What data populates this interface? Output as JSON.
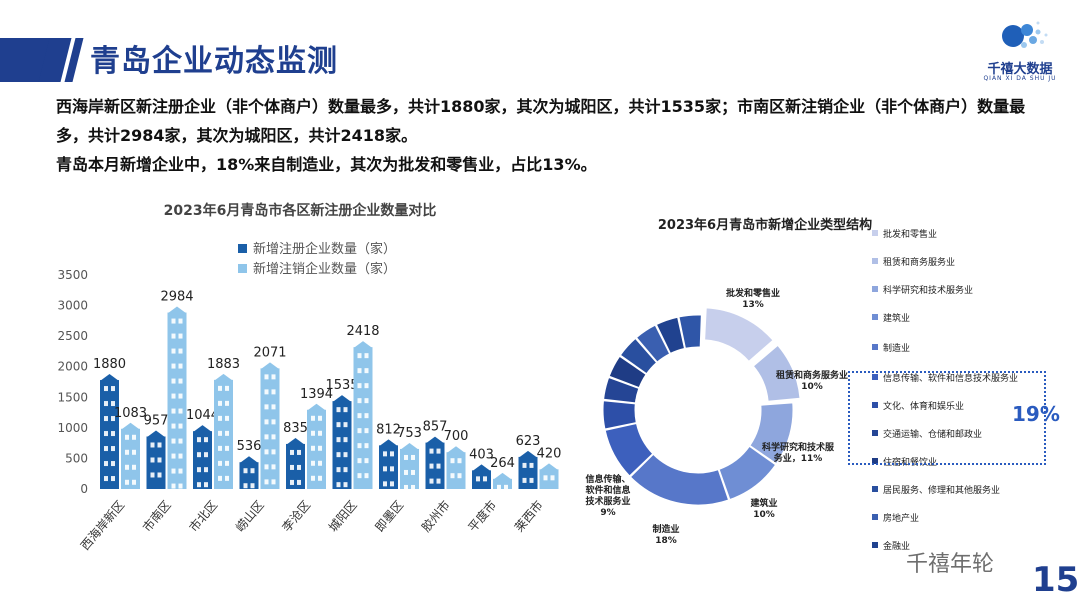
{
  "header": {
    "title": "青岛企业动态监测"
  },
  "logo": {
    "name": "千禧大数据",
    "sub": "QIAN XI DA SHU JU"
  },
  "summary": {
    "line1": "西海岸新区新注册企业（非个体商户）数量最多，共计1880家，其次为城阳区，共计1535家；市南区新注销企业（非个体商户）数量最多，共计2984家，其次为城阳区，共计2418家。",
    "line2": "青岛本月新增企业中，18%来自制造业，其次为批发和零售业，占比13%。"
  },
  "watermark": "千禧年轮",
  "page_number": "15",
  "highlight": {
    "value": "19%"
  },
  "colors": {
    "bar_new": "#1a5fa8",
    "bar_cancel": "#8fc5ea"
  },
  "chart_data": [
    {
      "type": "bar",
      "title": "2023年6月青岛市各区新注册企业数量对比",
      "categories": [
        "西海岸新区",
        "市南区",
        "市北区",
        "崂山区",
        "李沧区",
        "城阳区",
        "即墨区",
        "胶州市",
        "平度市",
        "莱西市"
      ],
      "series": [
        {
          "name": "新增注册企业数量（家）",
          "values": [
            1880,
            957,
            1044,
            536,
            835,
            1535,
            812,
            857,
            403,
            623
          ]
        },
        {
          "name": "新增注销企业数量（家）",
          "values": [
            1083,
            2984,
            1883,
            2071,
            1394,
            2418,
            753,
            700,
            264,
            420
          ]
        }
      ],
      "ylim": [
        0,
        3500
      ],
      "yticks": [
        0,
        500,
        1000,
        1500,
        2000,
        2500,
        3000,
        3500
      ]
    },
    {
      "type": "pie",
      "title": "2023年6月青岛市新增企业类型结构",
      "slices": [
        {
          "label": "批发和零售业",
          "value": 13,
          "display": "13%"
        },
        {
          "label": "租赁和商务服务业",
          "value": 10,
          "display": "10%"
        },
        {
          "label": "科学研究和技术服务业",
          "value": 11,
          "display": "11%"
        },
        {
          "label": "建筑业",
          "value": 10,
          "display": "10%"
        },
        {
          "label": "制造业",
          "value": 18,
          "display": "18%"
        },
        {
          "label": "信息传输、软件和信息技术服务业",
          "value": 9,
          "display": "9%"
        },
        {
          "label": "文化、体育和娱乐业",
          "value": 5
        },
        {
          "label": "交通运输、仓储和邮政业",
          "value": 4
        },
        {
          "label": "住宿和餐饮业",
          "value": 4
        },
        {
          "label": "居民服务、修理和其他服务业",
          "value": 4
        },
        {
          "label": "房地产业",
          "value": 4
        },
        {
          "label": "金融业",
          "value": 4
        },
        {
          "label": "",
          "value": 4
        }
      ],
      "callouts": {
        "批发和零售业": [
          "批发和零售业",
          "13%"
        ],
        "租赁和商务服务业": [
          "租赁和商务服务业",
          "10%"
        ],
        "科学研究和技术服务业": [
          "科学研究和技术服",
          "务业，11%"
        ],
        "建筑业": [
          "建筑业",
          "10%"
        ],
        "制造业": [
          "制造业",
          "18%"
        ],
        "信息传输、软件和信息技术服务业": [
          "信息传输、",
          "软件和信息",
          "技术服务业",
          "9%"
        ]
      },
      "legend": [
        "批发和零售业",
        "租赁和商务服务业",
        "科学研究和技术服务业",
        "建筑业",
        "制造业",
        "信息传输、软件和信息技术服务业",
        "文化、体育和娱乐业",
        "交通运输、仓储和邮政业",
        "住宿和餐饮业",
        "居民服务、修理和其他服务业",
        "房地产业",
        "金融业"
      ]
    }
  ]
}
